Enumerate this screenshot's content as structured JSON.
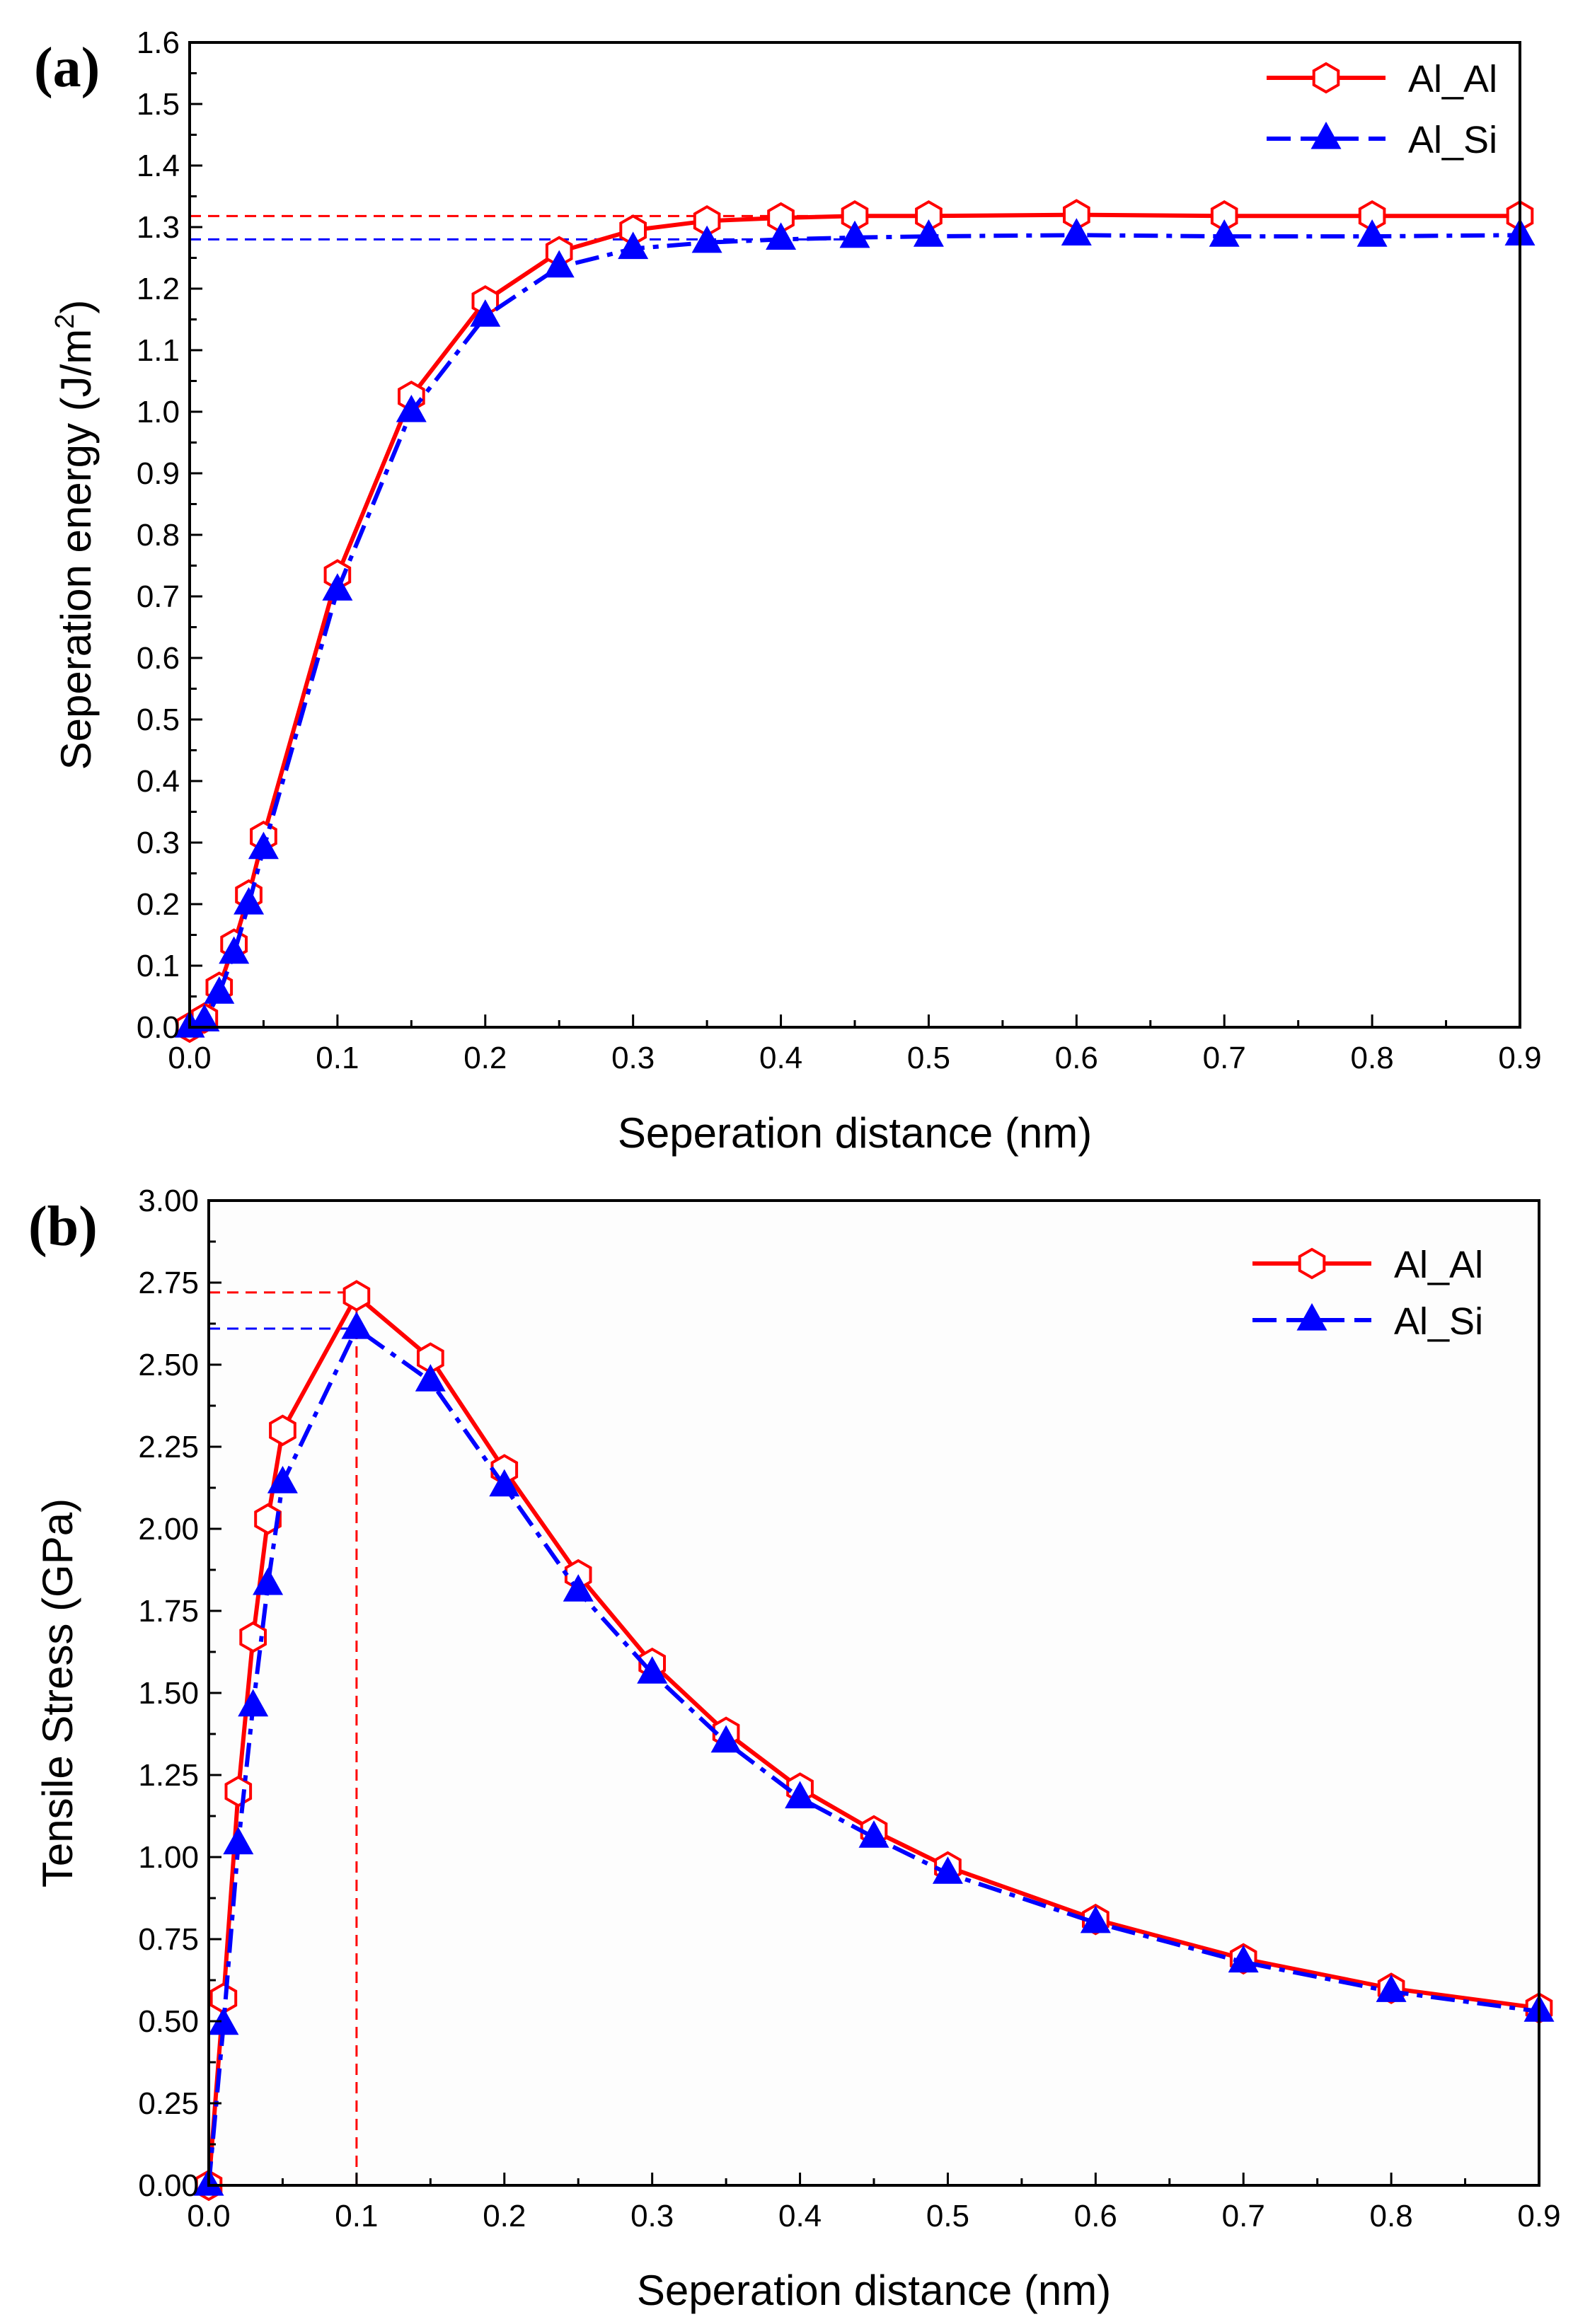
{
  "chart_data": [
    {
      "type": "line",
      "panel_label": "(a)",
      "xlabel": "Seperation distance (nm)",
      "ylabel": "Seperation energy (J/m",
      "ylabel_sup": "2",
      "ylabel_close": ")",
      "xlim": [
        0.0,
        0.9
      ],
      "ylim": [
        0.0,
        1.6
      ],
      "xticks": [
        "0.0",
        "0.1",
        "0.2",
        "0.3",
        "0.4",
        "0.5",
        "0.6",
        "0.7",
        "0.8",
        "0.9"
      ],
      "yticks": [
        "0.0",
        "0.1",
        "0.2",
        "0.3",
        "0.4",
        "0.5",
        "0.6",
        "0.7",
        "0.8",
        "0.9",
        "1.0",
        "1.1",
        "1.2",
        "1.3",
        "1.4",
        "1.5",
        "1.6"
      ],
      "legend_position": "top-right",
      "series": [
        {
          "name": "Al_Al",
          "color": "#ff0000",
          "marker": "hexagon-open",
          "line_style": "solid",
          "x": [
            0.0,
            0.01,
            0.02,
            0.03,
            0.04,
            0.05,
            0.1,
            0.15,
            0.2,
            0.25,
            0.3,
            0.35,
            0.4,
            0.45,
            0.5,
            0.6,
            0.7,
            0.8,
            0.9
          ],
          "y": [
            0.0,
            0.015,
            0.065,
            0.135,
            0.215,
            0.31,
            0.735,
            1.025,
            1.18,
            1.26,
            1.295,
            1.31,
            1.315,
            1.318,
            1.318,
            1.32,
            1.318,
            1.318,
            1.318
          ]
        },
        {
          "name": "Al_Si",
          "color": "#0000ff",
          "marker": "triangle-filled",
          "line_style": "dash-dot",
          "x": [
            0.0,
            0.01,
            0.02,
            0.03,
            0.04,
            0.05,
            0.1,
            0.15,
            0.2,
            0.25,
            0.3,
            0.35,
            0.4,
            0.45,
            0.5,
            0.6,
            0.7,
            0.8,
            0.9
          ],
          "y": [
            0.0,
            0.01,
            0.055,
            0.12,
            0.2,
            0.29,
            0.71,
            1.0,
            1.155,
            1.235,
            1.265,
            1.275,
            1.28,
            1.283,
            1.285,
            1.287,
            1.285,
            1.285,
            1.287
          ]
        }
      ],
      "reference_lines": [
        {
          "orientation": "horizontal",
          "y": 1.318,
          "x_from": 0.0,
          "x_to": 0.45,
          "color": "#ff0000"
        },
        {
          "orientation": "horizontal",
          "y": 1.28,
          "x_from": 0.0,
          "x_to": 0.45,
          "color": "#0000ff"
        }
      ]
    },
    {
      "type": "line",
      "panel_label": "(b)",
      "xlabel": "Seperation distance (nm)",
      "ylabel": "Tensile Stress (GPa)",
      "xlim": [
        0.0,
        0.9
      ],
      "ylim": [
        0.0,
        3.0
      ],
      "xticks": [
        "0.0",
        "0.1",
        "0.2",
        "0.3",
        "0.4",
        "0.5",
        "0.6",
        "0.7",
        "0.8",
        "0.9"
      ],
      "yticks": [
        "0.00",
        "0.25",
        "0.50",
        "0.75",
        "1.00",
        "1.25",
        "1.50",
        "1.75",
        "2.00",
        "2.25",
        "2.50",
        "2.75",
        "3.00"
      ],
      "legend_position": "top-right",
      "series": [
        {
          "name": "Al_Al",
          "color": "#ff0000",
          "marker": "hexagon-open",
          "line_style": "solid",
          "x": [
            0.0,
            0.01,
            0.02,
            0.03,
            0.04,
            0.05,
            0.1,
            0.15,
            0.2,
            0.25,
            0.3,
            0.35,
            0.4,
            0.45,
            0.5,
            0.6,
            0.7,
            0.8,
            0.9
          ],
          "y": [
            0.0,
            0.57,
            1.2,
            1.67,
            2.03,
            2.3,
            2.71,
            2.52,
            2.18,
            1.86,
            1.59,
            1.38,
            1.21,
            1.08,
            0.97,
            0.81,
            0.69,
            0.6,
            0.54
          ]
        },
        {
          "name": "Al_Si",
          "color": "#0000ff",
          "marker": "triangle-filled",
          "line_style": "dash-dot",
          "x": [
            0.0,
            0.01,
            0.02,
            0.03,
            0.04,
            0.05,
            0.1,
            0.15,
            0.2,
            0.25,
            0.3,
            0.35,
            0.4,
            0.45,
            0.5,
            0.6,
            0.7,
            0.8,
            0.9
          ],
          "y": [
            0.0,
            0.49,
            1.04,
            1.46,
            1.83,
            2.14,
            2.61,
            2.45,
            2.13,
            1.81,
            1.56,
            1.35,
            1.18,
            1.06,
            0.95,
            0.8,
            0.68,
            0.59,
            0.53
          ]
        }
      ],
      "reference_lines": [
        {
          "orientation": "horizontal",
          "y": 2.72,
          "x_from": 0.0,
          "x_to": 0.1,
          "color": "#ff0000"
        },
        {
          "orientation": "horizontal",
          "y": 2.61,
          "x_from": 0.0,
          "x_to": 0.1,
          "color": "#0000ff"
        },
        {
          "orientation": "vertical",
          "x": 0.1,
          "y_from": 0.0,
          "y_to": 2.72,
          "color": "#ff0000"
        }
      ]
    }
  ]
}
